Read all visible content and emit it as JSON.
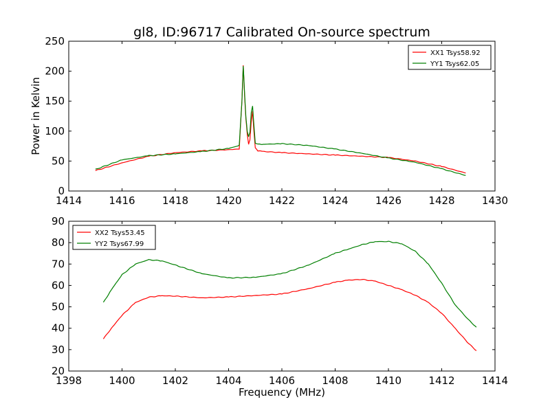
{
  "title": "gl8, ID:96717 Calibrated On-source spectrum",
  "colors": {
    "red": "#ff0000",
    "green": "#007f00",
    "axes": "#000000",
    "background": "#ffffff"
  },
  "chart_data": [
    {
      "type": "line",
      "title": "gl8, ID:96717 Calibrated On-source spectrum",
      "xlabel": "",
      "ylabel": "Power in Kelvin",
      "xlim": [
        1414,
        1430
      ],
      "ylim": [
        0,
        250
      ],
      "xticks": [
        1414,
        1416,
        1418,
        1420,
        1422,
        1424,
        1426,
        1428,
        1430
      ],
      "yticks": [
        0,
        50,
        100,
        150,
        200,
        250
      ],
      "grid": false,
      "legend_position": "top-right",
      "series": [
        {
          "name": "XX1 Tsys58.92",
          "color": "#ff0000",
          "x": [
            1415.0,
            1416.0,
            1417.0,
            1418.0,
            1419.0,
            1420.0,
            1420.4,
            1420.5,
            1420.55,
            1420.6,
            1420.65,
            1420.7,
            1420.75,
            1420.8,
            1420.85,
            1420.9,
            1420.95,
            1421.0,
            1421.1,
            1421.3,
            1422.0,
            1423.0,
            1424.0,
            1425.0,
            1426.0,
            1427.0,
            1428.0,
            1428.9
          ],
          "y": [
            34,
            47,
            58,
            64,
            67,
            69,
            70,
            150,
            210,
            160,
            120,
            95,
            78,
            85,
            115,
            133,
            100,
            72,
            67,
            66,
            64,
            62,
            60,
            58,
            56,
            50,
            41,
            30
          ]
        },
        {
          "name": "YY1 Tsys62.05",
          "color": "#007f00",
          "x": [
            1415.0,
            1416.0,
            1417.0,
            1418.0,
            1419.0,
            1420.0,
            1420.4,
            1420.5,
            1420.55,
            1420.6,
            1420.65,
            1420.7,
            1420.75,
            1420.8,
            1420.85,
            1420.9,
            1420.95,
            1421.0,
            1421.1,
            1421.3,
            1422.0,
            1423.0,
            1424.0,
            1425.0,
            1426.0,
            1427.0,
            1428.0,
            1428.9
          ],
          "y": [
            36,
            52,
            59,
            62,
            66,
            71,
            76,
            150,
            208,
            165,
            122,
            100,
            90,
            98,
            130,
            142,
            110,
            80,
            78,
            78,
            79,
            76,
            70,
            63,
            55,
            48,
            37,
            26
          ]
        }
      ]
    },
    {
      "type": "line",
      "title": "",
      "xlabel": "Frequency (MHz)",
      "ylabel": "",
      "xlim": [
        1398,
        1414
      ],
      "ylim": [
        20,
        90
      ],
      "xticks": [
        1398,
        1400,
        1402,
        1404,
        1406,
        1408,
        1410,
        1412,
        1414
      ],
      "yticks": [
        20,
        30,
        40,
        50,
        60,
        70,
        80,
        90
      ],
      "grid": false,
      "legend_position": "top-left",
      "series": [
        {
          "name": "XX2 Tsys53.45",
          "color": "#ff0000",
          "x": [
            1399.3,
            1399.6,
            1400.0,
            1400.5,
            1401.0,
            1401.5,
            1402.0,
            1403.0,
            1404.0,
            1405.0,
            1406.0,
            1407.0,
            1408.0,
            1408.5,
            1409.0,
            1409.5,
            1410.0,
            1410.5,
            1411.0,
            1411.5,
            1412.0,
            1412.5,
            1413.0,
            1413.3
          ],
          "y": [
            35,
            40,
            46,
            52,
            54.5,
            55.2,
            55,
            54.2,
            54.6,
            55.3,
            56,
            58.5,
            61.5,
            62.5,
            62.8,
            62,
            60,
            58,
            55.5,
            52,
            47,
            40,
            33,
            29.5
          ]
        },
        {
          "name": "YY2 Tsys67.99",
          "color": "#007f00",
          "x": [
            1399.3,
            1399.6,
            1400.0,
            1400.5,
            1401.0,
            1401.5,
            1402.0,
            1403.0,
            1404.0,
            1405.0,
            1406.0,
            1407.0,
            1408.0,
            1408.5,
            1409.0,
            1409.5,
            1410.0,
            1410.5,
            1411.0,
            1411.5,
            1412.0,
            1412.5,
            1413.0,
            1413.3
          ],
          "y": [
            52,
            58,
            65,
            70,
            72,
            71.5,
            69.5,
            65.5,
            63.5,
            63.8,
            65.5,
            69.5,
            75,
            77,
            79,
            80.5,
            80.5,
            79.5,
            76,
            70,
            61,
            51,
            44,
            40.5
          ]
        }
      ]
    }
  ]
}
